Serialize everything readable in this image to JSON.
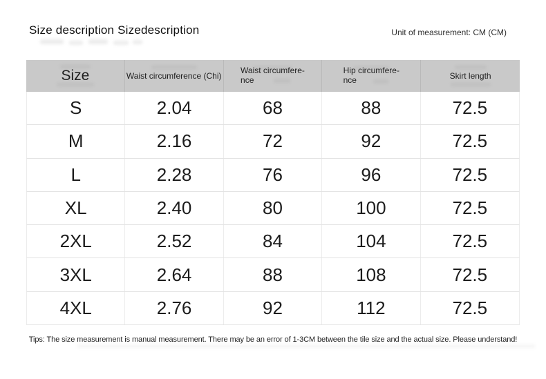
{
  "header": {
    "title": "Size description Sizedescription",
    "unit_label": "Unit of measurement: CM (CM)"
  },
  "table": {
    "headers": [
      {
        "line1": "Size",
        "line2": ""
      },
      {
        "line1": "Waist circumference (Chi)",
        "line2": ""
      },
      {
        "line1": "Waist circumfere-",
        "line2": "nce"
      },
      {
        "line1": "Hip circumfere-",
        "line2": "nce"
      },
      {
        "line1": "Skirt length",
        "line2": ""
      }
    ],
    "rows": [
      {
        "size": "S",
        "waist_chi": "2.04",
        "waist_cm": "68",
        "hip_cm": "88",
        "skirt": "72.5"
      },
      {
        "size": "M",
        "waist_chi": "2.16",
        "waist_cm": "72",
        "hip_cm": "92",
        "skirt": "72.5"
      },
      {
        "size": "L",
        "waist_chi": "2.28",
        "waist_cm": "76",
        "hip_cm": "96",
        "skirt": "72.5"
      },
      {
        "size": "XL",
        "waist_chi": "2.40",
        "waist_cm": "80",
        "hip_cm": "100",
        "skirt": "72.5"
      },
      {
        "size": "2XL",
        "waist_chi": "2.52",
        "waist_cm": "84",
        "hip_cm": "104",
        "skirt": "72.5"
      },
      {
        "size": "3XL",
        "waist_chi": "2.64",
        "waist_cm": "88",
        "hip_cm": "108",
        "skirt": "72.5"
      },
      {
        "size": "4XL",
        "waist_chi": "2.76",
        "waist_cm": "92",
        "hip_cm": "112",
        "skirt": "72.5"
      }
    ]
  },
  "footer": {
    "tips": "Tips: The size measurement is manual measurement. There may be an error of 1-3CM between the tile size and the actual size. Please understand!"
  },
  "colors": {
    "page_background": "#ffffff",
    "header_row_background": "#c9c9c9",
    "row_border": "#e3e3e3",
    "text": "#1c1c1c"
  }
}
